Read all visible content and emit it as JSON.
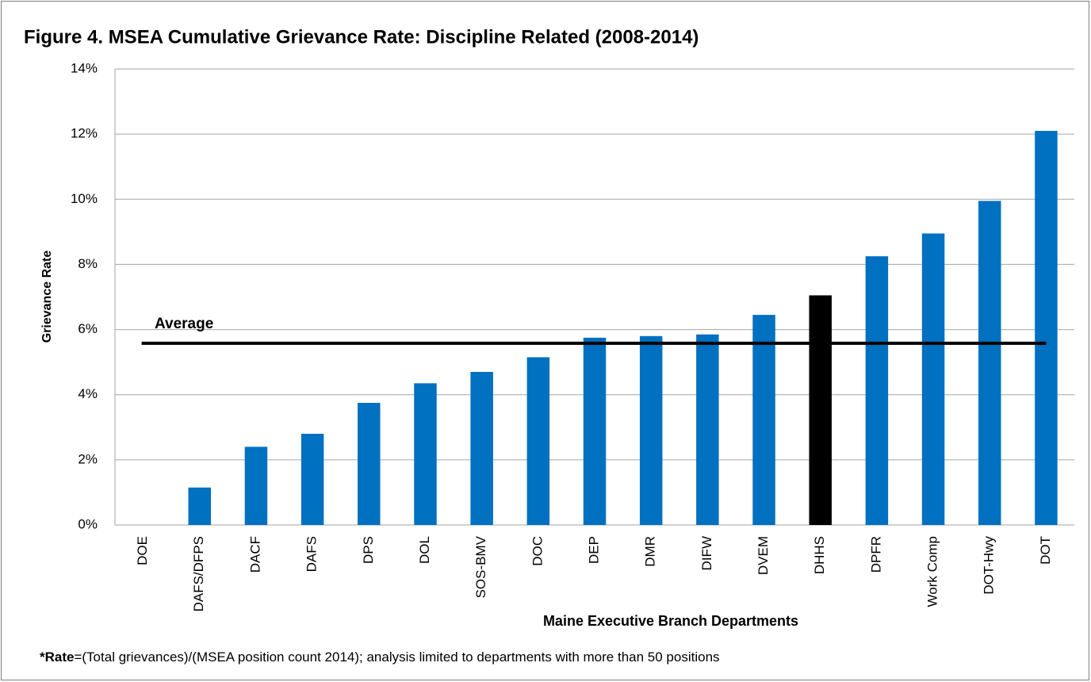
{
  "chart_data": {
    "type": "bar",
    "title": "Figure 4. MSEA Cumulative Grievance Rate: Discipline Related (2008-2014)",
    "x_label": "Maine Executive Branch Departments",
    "y_label": "Grievance Rate",
    "footnote_lead": "*Rate",
    "footnote": "=(Total grievances)/(MSEA position count 2014); analysis limited to departments with more than 50 positions",
    "categories": [
      "DOE",
      "DAFS/DFPS",
      "DACF",
      "DAFS",
      "DPS",
      "DOL",
      "SOS-BMV",
      "DOC",
      "DEP",
      "DMR",
      "DIFW",
      "DVEM",
      "DHHS",
      "DPFR",
      "Work Comp",
      "DOT-Hwy",
      "DOT"
    ],
    "values": [
      0,
      1.15,
      2.4,
      2.8,
      3.75,
      4.35,
      4.7,
      5.15,
      5.75,
      5.8,
      5.85,
      6.45,
      7.05,
      8.25,
      8.95,
      9.95,
      12.1
    ],
    "colors": [
      "#0070c0",
      "#0070c0",
      "#0070c0",
      "#0070c0",
      "#0070c0",
      "#0070c0",
      "#0070c0",
      "#0070c0",
      "#0070c0",
      "#0070c0",
      "#0070c0",
      "#0070c0",
      "#000000",
      "#0070c0",
      "#0070c0",
      "#0070c0",
      "#0070c0"
    ],
    "average": {
      "label": "Average",
      "value": 5.58,
      "color": "#000000"
    },
    "ylim": [
      0,
      14
    ],
    "yticks": [
      {
        "value": 0,
        "label": "0%"
      },
      {
        "value": 2,
        "label": "2%"
      },
      {
        "value": 4,
        "label": "4%"
      },
      {
        "value": 6,
        "label": "6%"
      },
      {
        "value": 8,
        "label": "8%"
      },
      {
        "value": 10,
        "label": "10%"
      },
      {
        "value": 12,
        "label": "12%"
      },
      {
        "value": 14,
        "label": "14%"
      }
    ],
    "grid": true
  }
}
